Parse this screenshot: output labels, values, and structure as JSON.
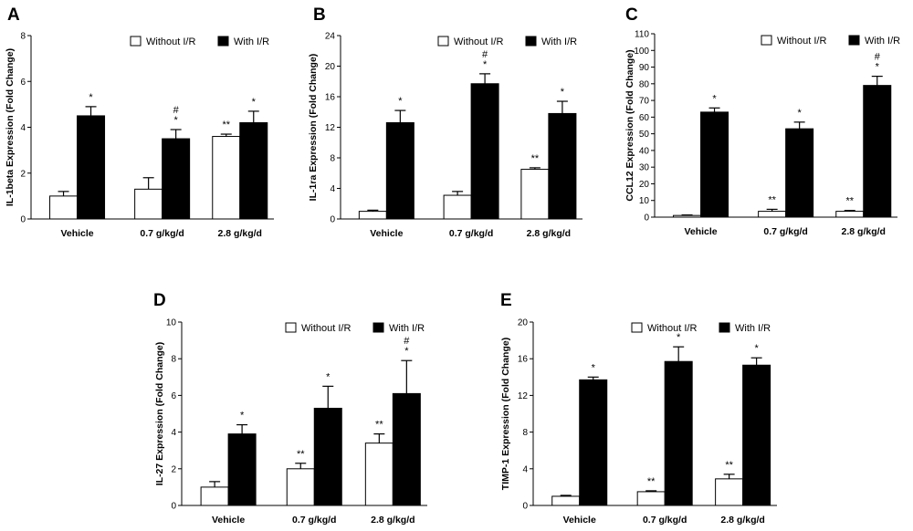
{
  "chart_data": [
    {
      "panel": "A",
      "type": "bar",
      "ylabel": "IL-1beta Expression (Fold Change)",
      "ylim": [
        0,
        8
      ],
      "yticks": [
        0,
        2,
        4,
        6,
        8
      ],
      "categories": [
        "Vehicle",
        "0.7 g/kg/d",
        "2.8 g/kg/d"
      ],
      "legend": [
        "Without I/R",
        "With I/R"
      ],
      "series": [
        {
          "name": "Without I/R",
          "color": "#ffffff",
          "values": [
            1.0,
            1.3,
            3.6
          ],
          "errors": [
            0.2,
            0.5,
            0.1
          ],
          "marks": [
            "",
            "",
            "**"
          ]
        },
        {
          "name": "With I/R",
          "color": "#000000",
          "values": [
            4.5,
            3.5,
            4.2
          ],
          "errors": [
            0.4,
            0.4,
            0.5
          ],
          "marks": [
            "*",
            "#\n*",
            "*"
          ]
        }
      ]
    },
    {
      "panel": "B",
      "type": "bar",
      "ylabel": "IL-1ra Expression (Fold Change)",
      "ylim": [
        0,
        24
      ],
      "yticks": [
        0,
        4,
        8,
        12,
        16,
        20,
        24
      ],
      "categories": [
        "Vehicle",
        "0.7 g/kg/d",
        "2.8 g/kg/d"
      ],
      "legend": [
        "Without I/R",
        "With I/R"
      ],
      "series": [
        {
          "name": "Without I/R",
          "color": "#ffffff",
          "values": [
            1.0,
            3.1,
            6.5
          ],
          "errors": [
            0.15,
            0.5,
            0.2
          ],
          "marks": [
            "",
            "",
            "**"
          ]
        },
        {
          "name": "With I/R",
          "color": "#000000",
          "values": [
            12.6,
            17.7,
            13.8
          ],
          "errors": [
            1.6,
            1.3,
            1.6
          ],
          "marks": [
            "*",
            "#\n*",
            "*"
          ]
        }
      ]
    },
    {
      "panel": "C",
      "type": "bar",
      "ylabel": "CCL12 Expression (Fold Change)",
      "ylim": [
        0,
        110
      ],
      "yticks": [
        0,
        10,
        20,
        30,
        40,
        50,
        60,
        70,
        80,
        90,
        100,
        110
      ],
      "categories": [
        "Vehicle",
        "0.7 g/kg/d",
        "2.8 g/kg/d"
      ],
      "legend": [
        "Without I/R",
        "With I/R"
      ],
      "series": [
        {
          "name": "Without I/R",
          "color": "#ffffff",
          "values": [
            1.0,
            3.5,
            3.5
          ],
          "errors": [
            0.3,
            1.2,
            0.5
          ],
          "marks": [
            "",
            "**",
            "**"
          ]
        },
        {
          "name": "With I/R",
          "color": "#000000",
          "values": [
            63,
            53,
            79
          ],
          "errors": [
            2.5,
            4,
            5.5
          ],
          "marks": [
            "*",
            "*",
            "#\n*"
          ]
        }
      ]
    },
    {
      "panel": "D",
      "type": "bar",
      "ylabel": "IL-27 Expression (Fold Change)",
      "ylim": [
        0,
        10
      ],
      "yticks": [
        0,
        2,
        4,
        6,
        8,
        10
      ],
      "categories": [
        "Vehicle",
        "0.7 g/kg/d",
        "2.8 g/kg/d"
      ],
      "legend": [
        "Without I/R",
        "With I/R"
      ],
      "series": [
        {
          "name": "Without I/R",
          "color": "#ffffff",
          "values": [
            1.0,
            2.0,
            3.4
          ],
          "errors": [
            0.3,
            0.3,
            0.5
          ],
          "marks": [
            "",
            "**",
            "**"
          ]
        },
        {
          "name": "With I/R",
          "color": "#000000",
          "values": [
            3.9,
            5.3,
            6.1
          ],
          "errors": [
            0.5,
            1.2,
            1.8
          ],
          "marks": [
            "*",
            "*",
            "#\n*"
          ]
        }
      ]
    },
    {
      "panel": "E",
      "type": "bar",
      "ylabel": "TIMP-1 Expression (Fold Change)",
      "ylim": [
        0,
        20
      ],
      "yticks": [
        0,
        4,
        8,
        12,
        16,
        20
      ],
      "categories": [
        "Vehicle",
        "0.7 g/kg/d",
        "2.8 g/kg/d"
      ],
      "legend": [
        "Without I/R",
        "With I/R"
      ],
      "series": [
        {
          "name": "Without I/R",
          "color": "#ffffff",
          "values": [
            1.0,
            1.5,
            2.9
          ],
          "errors": [
            0.1,
            0.1,
            0.5
          ],
          "marks": [
            "",
            "**",
            "**"
          ]
        },
        {
          "name": "With I/R",
          "color": "#000000",
          "values": [
            13.7,
            15.7,
            15.3
          ],
          "errors": [
            0.3,
            1.6,
            0.8
          ],
          "marks": [
            "*",
            "*",
            "*"
          ]
        }
      ]
    }
  ]
}
